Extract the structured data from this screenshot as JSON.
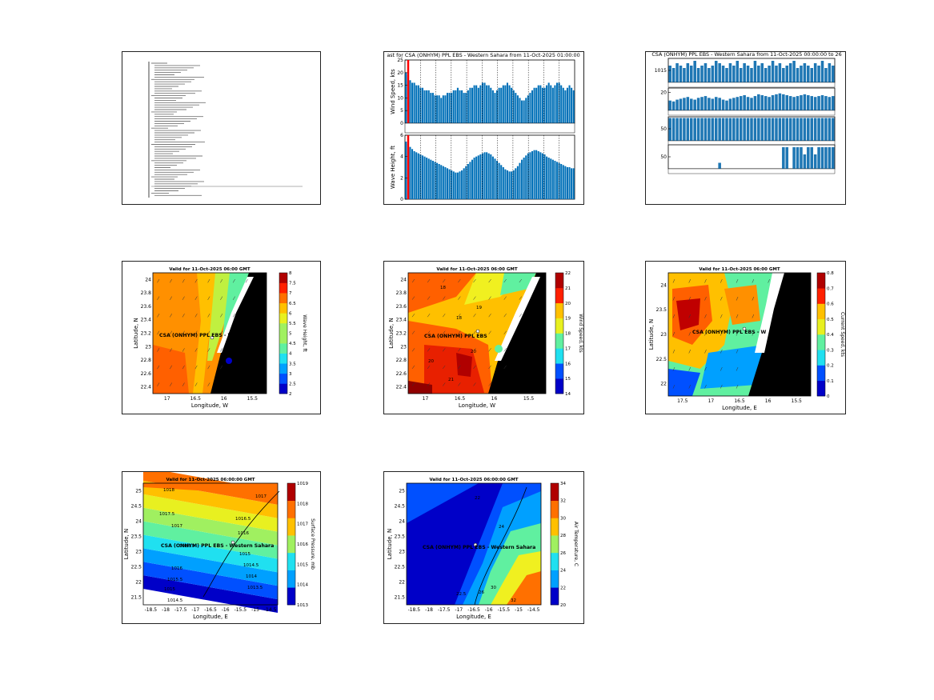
{
  "chart_data": [
    {
      "id": "p1",
      "type": "table",
      "title": "",
      "rows": []
    },
    {
      "id": "p2",
      "type": "bar",
      "title": "ast for CSA (ONHYM) PPL EBS - Western Sahara from 11-Oct-2025 01:00:00",
      "series": [
        {
          "name": "",
          "ylabel": "Wind Speed, kts",
          "ylim": [
            0,
            25
          ],
          "yticks": [
            0,
            5,
            10,
            15,
            20,
            25
          ],
          "values": [
            20,
            19,
            17,
            16,
            16,
            15,
            15,
            14,
            14,
            13,
            13,
            13,
            12,
            12,
            11,
            11,
            11,
            10,
            11,
            11,
            12,
            12,
            12,
            13,
            13,
            14,
            13,
            13,
            12,
            12,
            13,
            14,
            14,
            15,
            15,
            14,
            15,
            16,
            16,
            15,
            15,
            14,
            13,
            12,
            13,
            14,
            14,
            15,
            15,
            16,
            15,
            14,
            13,
            12,
            11,
            10,
            9,
            9,
            10,
            11,
            12,
            13,
            14,
            14,
            15,
            15,
            14,
            14,
            15,
            16,
            15,
            14,
            15,
            16,
            16,
            15,
            14,
            13,
            14,
            15,
            14,
            13
          ]
        },
        {
          "name": "",
          "ylabel": "Wave Height, ft",
          "ylim": [
            0,
            6
          ],
          "yticks": [
            0,
            2,
            4,
            6
          ],
          "values": [
            5.4,
            5.2,
            4.9,
            4.7,
            4.5,
            4.4,
            4.3,
            4.2,
            4.1,
            4.0,
            3.9,
            3.8,
            3.7,
            3.6,
            3.5,
            3.4,
            3.3,
            3.2,
            3.1,
            3.0,
            2.9,
            2.8,
            2.7,
            2.6,
            2.5,
            2.5,
            2.6,
            2.7,
            2.9,
            3.1,
            3.3,
            3.5,
            3.7,
            3.9,
            4.0,
            4.1,
            4.2,
            4.3,
            4.4,
            4.4,
            4.3,
            4.2,
            4.0,
            3.8,
            3.6,
            3.4,
            3.2,
            3.0,
            2.8,
            2.7,
            2.6,
            2.6,
            2.7,
            2.9,
            3.1,
            3.4,
            3.7,
            3.9,
            4.1,
            4.3,
            4.4,
            4.5,
            4.6,
            4.6,
            4.5,
            4.4,
            4.3,
            4.2,
            4.0,
            3.9,
            3.8,
            3.7,
            3.6,
            3.5,
            3.4,
            3.3,
            3.2,
            3.1,
            3.0,
            3.0,
            2.9,
            2.9
          ]
        }
      ],
      "marker_color": "#ff0000",
      "bar_color": "#0070b8"
    },
    {
      "id": "p3",
      "type": "bar",
      "title": "CSA (ONHYM) PPL EBS - Western Sahara from 11-Oct-2025 00:00:00 to 26",
      "series": [
        {
          "name": "",
          "ylabel": "",
          "ylim": [
            1010,
            1020
          ],
          "yticks": [
            1015
          ],
          "values": [
            1017,
            1016,
            1018,
            1017,
            1016,
            1018,
            1017,
            1019,
            1016,
            1017,
            1018,
            1016,
            1017,
            1019,
            1018,
            1017,
            1016,
            1018,
            1017,
            1019,
            1016,
            1018,
            1017,
            1016,
            1019,
            1017,
            1018,
            1016,
            1017,
            1019,
            1017,
            1018,
            1016,
            1017,
            1018,
            1019,
            1016,
            1017,
            1018,
            1017,
            1016,
            1018,
            1017,
            1019,
            1016,
            1018,
            1017
          ]
        },
        {
          "name": "",
          "ylabel": "",
          "ylim": [
            0,
            25
          ],
          "yticks": [
            20
          ],
          "values": [
            11,
            10,
            12,
            13,
            14,
            15,
            13,
            12,
            14,
            15,
            16,
            14,
            13,
            15,
            14,
            12,
            11,
            13,
            14,
            15,
            16,
            17,
            15,
            14,
            16,
            18,
            17,
            16,
            15,
            17,
            18,
            19,
            18,
            17,
            16,
            15,
            16,
            17,
            18,
            17,
            16,
            15,
            16,
            17,
            16,
            15,
            16
          ]
        },
        {
          "name": "",
          "ylabel": "",
          "ylim": [
            0,
            100
          ],
          "yticks": [
            50
          ],
          "values": [
            95,
            95,
            95,
            95,
            95,
            95,
            95,
            95,
            95,
            95,
            95,
            95,
            95,
            95,
            95,
            95,
            95,
            95,
            95,
            95,
            95,
            95,
            95,
            95,
            95,
            95,
            95,
            95,
            95,
            95,
            95,
            95,
            95,
            95,
            95,
            95,
            95,
            95,
            95,
            95,
            95,
            95,
            95,
            95,
            95,
            95,
            95
          ]
        },
        {
          "name": "",
          "ylabel": "",
          "ylim": [
            0,
            100
          ],
          "yticks": [
            50
          ],
          "values": [
            0,
            0,
            0,
            0,
            0,
            0,
            0,
            0,
            0,
            0,
            0,
            0,
            0,
            0,
            25,
            0,
            0,
            0,
            0,
            0,
            0,
            0,
            0,
            0,
            0,
            0,
            0,
            0,
            0,
            0,
            0,
            0,
            90,
            90,
            0,
            90,
            90,
            90,
            60,
            90,
            90,
            60,
            90,
            90,
            90,
            90,
            90
          ]
        }
      ],
      "bar_color": "#1f77b4"
    },
    {
      "id": "p4",
      "type": "heatmap",
      "title": "Valid for 11-Oct-2025 06:00 GMT",
      "xlabel": "Longitude, W",
      "ylabel": "Latitude, N",
      "xticks": [
        "17",
        "16.5",
        "16",
        "15.5"
      ],
      "yticks": [
        "24",
        "23.8",
        "23.6",
        "23.4",
        "23.2",
        "23",
        "22.8",
        "22.6",
        "22.4"
      ],
      "colorbar_label": "Wave Height, ft",
      "colorbar_ticks": [
        "8",
        "7.5",
        "7",
        "6.5",
        "6",
        "5.5",
        "5",
        "4.5",
        "4",
        "3.5",
        "3",
        "2.5",
        "2"
      ],
      "site_label": "CSA (ONHYM) PPL EBS - W"
    },
    {
      "id": "p5",
      "type": "heatmap",
      "title": "Valid for 11-Oct-2025 06:00 GMT",
      "xlabel": "Longitude, W",
      "ylabel": "Latitude, N",
      "xticks": [
        "17",
        "16.5",
        "16",
        "15.5"
      ],
      "yticks": [
        "24",
        "23.8",
        "23.6",
        "23.4",
        "23.2",
        "23",
        "22.8",
        "22.6",
        "22.4"
      ],
      "colorbar_label": "Wind Speed, kts",
      "colorbar_ticks": [
        "22",
        "21",
        "20",
        "19",
        "18",
        "17",
        "16",
        "15",
        "14"
      ],
      "site_label": "CSA (ONHYM) PPL EBS",
      "contour_labels": [
        "18",
        "19",
        "18",
        "20",
        "21",
        "20"
      ]
    },
    {
      "id": "p6",
      "type": "heatmap",
      "title": "Valid for 11-Oct-2025 06:00 GMT",
      "xlabel": "Longitude, E",
      "ylabel": "Latitude, N",
      "xticks": [
        "17.5",
        "17",
        "16.5",
        "16",
        "15.5"
      ],
      "yticks": [
        "24",
        "23.5",
        "23",
        "22.5",
        "22"
      ],
      "colorbar_label": "Current Speed, kts",
      "colorbar_ticks": [
        "0.8",
        "0.7",
        "0.6",
        "0.5",
        "0.4",
        "0.3",
        "0.2",
        "0.1",
        "0"
      ],
      "site_label": "CSA (ONHYM) PPL EBS - W"
    },
    {
      "id": "p7",
      "type": "heatmap",
      "title": "Valid for 11-Oct-2025 06:00:00 GMT",
      "xlabel": "Longitude, E",
      "ylabel": "Latitude, N",
      "xticks": [
        "-18.5",
        "-18",
        "-17.5",
        "-17",
        "-16.5",
        "-16",
        "-15.5",
        "-15",
        "-14.5"
      ],
      "yticks": [
        "25",
        "24.5",
        "24",
        "23.5",
        "23",
        "22.5",
        "22",
        "21.5"
      ],
      "colorbar_label": "Surface Pressure, mb",
      "colorbar_ticks": [
        "1019",
        "1018",
        "1017",
        "1016",
        "1015",
        "1014",
        "1013"
      ],
      "site_label": "CSA (ONHYM) PPL EBS - Western Sahara",
      "contour_labels": [
        "1018",
        "1017",
        "1017.5",
        "1017",
        "1016.5",
        "1016",
        "1015.5",
        "1015",
        "1014.5",
        "1016.5",
        "1016",
        "1015",
        "1014.5",
        "1014",
        "1013.5"
      ]
    },
    {
      "id": "p8",
      "type": "heatmap",
      "title": "Valid for 11-Oct-2025 06:00:00 GMT",
      "xlabel": "Longitude, E",
      "ylabel": "Latitude, N",
      "xticks": [
        "-18.5",
        "-18",
        "-17.5",
        "-17",
        "-16.5",
        "-16",
        "-15.5",
        "-15",
        "-14.5"
      ],
      "yticks": [
        "25",
        "24.5",
        "24",
        "23.5",
        "23",
        "22.5",
        "22",
        "21.5"
      ],
      "colorbar_label": "Air Temperature, C",
      "colorbar_ticks": [
        "34",
        "32",
        "30",
        "28",
        "26",
        "24",
        "22",
        "20"
      ],
      "site_label": "CSA (ONHYM) PPL EBS - Western Sahara",
      "contour_labels": [
        "22",
        "24",
        "22.5",
        "26",
        "30",
        "32"
      ]
    }
  ]
}
